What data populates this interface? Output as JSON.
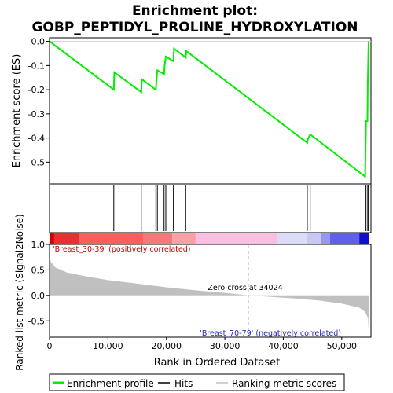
{
  "chart_data": {
    "type": "line",
    "title_line1": "Enrichment plot:",
    "title_line2": "GOBP_PEPTIDYL_PROLINE_HYDROXYLATION",
    "es_panel": {
      "ylabel": "Enrichment score (ES)",
      "ylim": [
        -0.59,
        0.015
      ],
      "yticks": [
        0.0,
        -0.1,
        -0.2,
        -0.3,
        -0.4,
        -0.5
      ],
      "ytick_labels": [
        "0.0",
        "-0.1",
        "-0.2",
        "-0.3",
        "-0.4",
        "-0.5"
      ],
      "line_color": "#00ee00",
      "points": [
        [
          0,
          0.0
        ],
        [
          11000,
          -0.2
        ],
        [
          11100,
          -0.128
        ],
        [
          15700,
          -0.21
        ],
        [
          15800,
          -0.157
        ],
        [
          18200,
          -0.2
        ],
        [
          18300,
          -0.158
        ],
        [
          18450,
          -0.12
        ],
        [
          19600,
          -0.135
        ],
        [
          19700,
          -0.098
        ],
        [
          19900,
          -0.063
        ],
        [
          21200,
          -0.082
        ],
        [
          21300,
          -0.03
        ],
        [
          23300,
          -0.067
        ],
        [
          23400,
          -0.04
        ],
        [
          44100,
          -0.42
        ],
        [
          44200,
          -0.405
        ],
        [
          44600,
          -0.385
        ],
        [
          54000,
          -0.56
        ],
        [
          54080,
          -0.445
        ],
        [
          54150,
          -0.33
        ],
        [
          54400,
          -0.33
        ],
        [
          54450,
          -0.18
        ],
        [
          54600,
          0.0
        ]
      ]
    },
    "hits": [
      11000,
      15700,
      18200,
      18450,
      19600,
      19900,
      21200,
      23300,
      44100,
      44600,
      54000,
      54150,
      54450,
      54600
    ],
    "xlim": [
      0,
      55000
    ],
    "color_bar": [
      {
        "from": 0,
        "to": 800,
        "color": "#d40000"
      },
      {
        "from": 800,
        "to": 5000,
        "color": "#e83030"
      },
      {
        "from": 5000,
        "to": 16000,
        "color": "#f86060"
      },
      {
        "from": 16000,
        "to": 21000,
        "color": "#f47a7a"
      },
      {
        "from": 21000,
        "to": 25000,
        "color": "#f8a0a8"
      },
      {
        "from": 25000,
        "to": 39000,
        "color": "#f8c0e0"
      },
      {
        "from": 39000,
        "to": 44000,
        "color": "#dcdcf8"
      },
      {
        "from": 44000,
        "to": 46500,
        "color": "#c8c8f4"
      },
      {
        "from": 46500,
        "to": 48000,
        "color": "#9898f0"
      },
      {
        "from": 48000,
        "to": 53000,
        "color": "#6060e8"
      },
      {
        "from": 53000,
        "to": 54700,
        "color": "#1010c8"
      }
    ],
    "metric_panel": {
      "ylabel": "Ranked list metric (Signal2Noise)",
      "ylim": [
        -0.82,
        1.0
      ],
      "yticks": [
        1.0,
        0.5,
        0.0,
        -0.5
      ],
      "ytick_labels": [
        "1.0",
        "0.5",
        "0.0",
        "-0.5"
      ],
      "fill_color": "#c0c0c0",
      "curve": [
        [
          0,
          0.82
        ],
        [
          200,
          0.66
        ],
        [
          1000,
          0.55
        ],
        [
          3000,
          0.45
        ],
        [
          6000,
          0.38
        ],
        [
          10000,
          0.3
        ],
        [
          15000,
          0.23
        ],
        [
          20000,
          0.16
        ],
        [
          25000,
          0.1
        ],
        [
          30000,
          0.05
        ],
        [
          34024,
          0.0
        ],
        [
          38000,
          -0.03
        ],
        [
          42000,
          -0.06
        ],
        [
          46000,
          -0.1
        ],
        [
          50000,
          -0.16
        ],
        [
          53000,
          -0.24
        ],
        [
          54000,
          -0.32
        ],
        [
          54500,
          -0.45
        ],
        [
          54650,
          -0.82
        ]
      ],
      "zero_cross_value": 34024,
      "zero_cross_label": "Zero cross at 34024",
      "pos_label": "'Breast_30-39' (positively correlated)",
      "neg_label": "'Breast_70-79' (negatively correlated)"
    },
    "xlabel": "Rank in Ordered Dataset",
    "xticks": [
      0,
      10000,
      20000,
      30000,
      40000,
      50000
    ],
    "xtick_labels": [
      "0",
      "10,000",
      "20,000",
      "30,000",
      "40,000",
      "50,000"
    ],
    "legend": {
      "placement": "bottom",
      "items": [
        {
          "label": "Enrichment profile",
          "color": "#00ee00"
        },
        {
          "label": "Hits",
          "color": "#000000"
        },
        {
          "label": "Ranking metric scores",
          "color": "#c0c0c0"
        }
      ]
    }
  }
}
